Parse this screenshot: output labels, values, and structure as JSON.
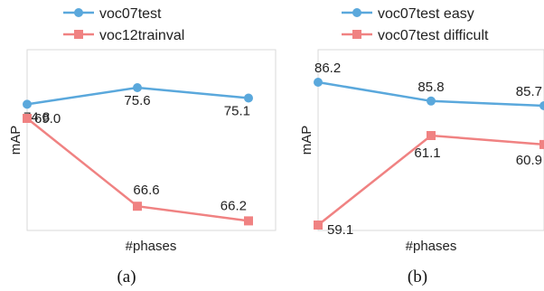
{
  "colors": {
    "blue": "#5aa8dc",
    "red": "#f08282",
    "frame": "#d9d9d9"
  },
  "chart_data": [
    {
      "type": "line",
      "caption": "(a)",
      "xlabel": "#phases",
      "ylabel": "mAP",
      "categories": [
        "",
        "",
        ""
      ],
      "series": [
        {
          "name": "voc07test",
          "marker": "circle",
          "color": "#5aa8dc",
          "values": [
            74.8,
            75.6,
            75.1
          ]
        },
        {
          "name": "voc12trainval",
          "marker": "square",
          "color": "#f08282",
          "values": [
            69.0,
            66.6,
            66.2
          ]
        }
      ],
      "grid": false,
      "legend": "top"
    },
    {
      "type": "line",
      "caption": "(b)",
      "xlabel": "#phases",
      "ylabel": "mAP",
      "categories": [
        "",
        "",
        ""
      ],
      "series": [
        {
          "name": "voc07test easy",
          "marker": "circle",
          "color": "#5aa8dc",
          "values": [
            86.2,
            85.8,
            85.7
          ]
        },
        {
          "name": "voc07test difficult",
          "marker": "square",
          "color": "#f08282",
          "values": [
            59.1,
            61.1,
            60.9
          ]
        }
      ],
      "grid": false,
      "legend": "top"
    }
  ]
}
